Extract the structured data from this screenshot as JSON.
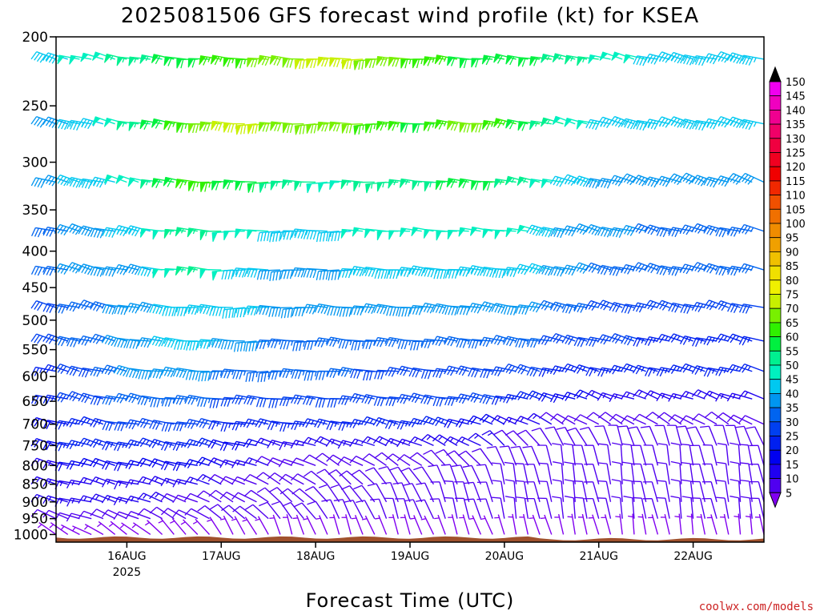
{
  "chart_data": {
    "type": "wind-barb-profile",
    "title": "2025081506 GFS forecast wind profile (kt) for KSEA",
    "xlabel": "Forecast Time (UTC)",
    "ylabel": "",
    "y_axis": {
      "scale": "log",
      "inverted": true,
      "range": [
        1025,
        200
      ],
      "ticks": [
        200,
        250,
        300,
        350,
        400,
        450,
        500,
        550,
        600,
        650,
        700,
        750,
        800,
        850,
        900,
        950,
        1000
      ],
      "tick_labels": [
        "200",
        "250",
        "300",
        "350",
        "400",
        "450",
        "500",
        "550",
        "600",
        "650",
        "700",
        "750",
        "800",
        "850",
        "900",
        "950",
        "1000"
      ]
    },
    "x_axis": {
      "range": [
        "2025-08-15 06Z",
        "2025-08-22 18Z"
      ],
      "ticks": [
        "16AUG",
        "17AUG",
        "18AUG",
        "19AUG",
        "20AUG",
        "21AUG",
        "22AUG"
      ],
      "tick_offsets_days": [
        0.75,
        1.75,
        2.75,
        3.75,
        4.75,
        5.75,
        6.75
      ],
      "range_days": [
        0,
        7.5
      ],
      "year_label": "2025",
      "year_under": "16AUG"
    },
    "barb_levels": [
      215,
      265,
      320,
      375,
      425,
      480,
      535,
      590,
      645,
      700,
      750,
      800,
      850,
      900,
      950,
      1000
    ],
    "barb_interval_hours": 3,
    "profile": [
      {
        "level": 215,
        "speed": [
          45,
          50,
          55,
          60,
          65,
          70,
          75,
          70,
          65,
          60,
          60,
          55,
          50,
          45,
          45,
          45
        ],
        "direction": [
          285,
          285,
          280,
          275,
          275,
          275,
          270,
          270,
          275,
          275,
          280,
          280,
          285,
          285,
          285,
          285
        ]
      },
      {
        "level": 265,
        "speed": [
          40,
          45,
          55,
          65,
          75,
          70,
          70,
          65,
          60,
          70,
          60,
          50,
          45,
          45,
          45,
          45
        ],
        "direction": [
          285,
          285,
          280,
          275,
          270,
          270,
          270,
          270,
          275,
          275,
          280,
          285,
          285,
          285,
          285,
          285
        ]
      },
      {
        "level": 320,
        "speed": [
          40,
          45,
          50,
          65,
          60,
          55,
          50,
          55,
          55,
          60,
          55,
          45,
          40,
          40,
          40,
          40
        ],
        "direction": [
          285,
          285,
          285,
          275,
          270,
          270,
          270,
          270,
          275,
          275,
          280,
          285,
          285,
          290,
          290,
          290
        ]
      },
      {
        "level": 375,
        "speed": [
          35,
          40,
          45,
          55,
          50,
          45,
          45,
          50,
          50,
          50,
          50,
          40,
          40,
          35,
          35,
          35
        ],
        "direction": [
          285,
          285,
          280,
          275,
          270,
          270,
          270,
          275,
          275,
          275,
          280,
          285,
          285,
          285,
          285,
          285
        ]
      },
      {
        "level": 425,
        "speed": [
          35,
          40,
          40,
          55,
          45,
          40,
          40,
          45,
          45,
          45,
          45,
          40,
          35,
          35,
          35,
          35
        ],
        "direction": [
          285,
          285,
          280,
          275,
          270,
          270,
          270,
          275,
          275,
          275,
          280,
          285,
          285,
          285,
          285,
          285
        ]
      },
      {
        "level": 480,
        "speed": [
          30,
          35,
          40,
          45,
          45,
          40,
          40,
          40,
          40,
          40,
          40,
          35,
          30,
          30,
          30,
          30
        ],
        "direction": [
          285,
          285,
          280,
          275,
          270,
          270,
          275,
          275,
          275,
          280,
          280,
          285,
          285,
          285,
          285,
          285
        ]
      },
      {
        "level": 535,
        "speed": [
          30,
          35,
          40,
          45,
          40,
          35,
          35,
          35,
          35,
          35,
          35,
          30,
          30,
          25,
          25,
          25
        ],
        "direction": [
          285,
          285,
          280,
          275,
          270,
          270,
          275,
          275,
          275,
          280,
          280,
          285,
          285,
          285,
          285,
          285
        ]
      },
      {
        "level": 590,
        "speed": [
          25,
          30,
          40,
          40,
          35,
          35,
          35,
          30,
          30,
          30,
          30,
          25,
          25,
          25,
          25,
          25
        ],
        "direction": [
          285,
          285,
          280,
          275,
          270,
          270,
          275,
          275,
          280,
          280,
          285,
          285,
          285,
          285,
          285,
          285
        ]
      },
      {
        "level": 645,
        "speed": [
          25,
          30,
          35,
          35,
          30,
          30,
          30,
          30,
          30,
          30,
          25,
          20,
          15,
          15,
          15,
          15
        ],
        "direction": [
          285,
          285,
          280,
          275,
          275,
          275,
          275,
          280,
          280,
          280,
          285,
          290,
          290,
          290,
          290,
          290
        ]
      },
      {
        "level": 700,
        "speed": [
          20,
          25,
          30,
          30,
          25,
          25,
          25,
          25,
          25,
          20,
          15,
          10,
          10,
          10,
          10,
          10
        ],
        "direction": [
          285,
          285,
          280,
          280,
          280,
          280,
          280,
          285,
          285,
          290,
          295,
          300,
          300,
          300,
          300,
          300
        ]
      },
      {
        "level": 750,
        "speed": [
          20,
          25,
          25,
          25,
          20,
          15,
          15,
          15,
          15,
          15,
          10,
          10,
          8,
          8,
          8,
          8
        ],
        "direction": [
          285,
          285,
          285,
          285,
          285,
          285,
          290,
          290,
          295,
          300,
          320,
          330,
          340,
          340,
          340,
          340
        ]
      },
      {
        "level": 800,
        "speed": [
          15,
          20,
          20,
          20,
          15,
          10,
          10,
          10,
          10,
          10,
          8,
          8,
          8,
          8,
          8,
          8
        ],
        "direction": [
          285,
          285,
          285,
          285,
          290,
          290,
          300,
          300,
          310,
          320,
          340,
          350,
          350,
          350,
          350,
          350
        ]
      },
      {
        "level": 850,
        "speed": [
          15,
          15,
          15,
          15,
          10,
          10,
          8,
          8,
          8,
          8,
          8,
          8,
          8,
          8,
          8,
          8
        ],
        "direction": [
          285,
          285,
          285,
          290,
          295,
          300,
          310,
          320,
          330,
          340,
          350,
          350,
          350,
          350,
          350,
          350
        ]
      },
      {
        "level": 900,
        "speed": [
          15,
          15,
          15,
          10,
          10,
          8,
          8,
          8,
          8,
          8,
          8,
          8,
          8,
          8,
          8,
          8
        ],
        "direction": [
          285,
          285,
          290,
          295,
          300,
          310,
          320,
          330,
          340,
          345,
          350,
          350,
          350,
          350,
          350,
          350
        ]
      },
      {
        "level": 950,
        "speed": [
          10,
          10,
          10,
          10,
          8,
          8,
          8,
          8,
          8,
          8,
          8,
          8,
          8,
          8,
          8,
          8
        ],
        "direction": [
          290,
          290,
          295,
          300,
          310,
          320,
          330,
          340,
          340,
          345,
          350,
          350,
          350,
          350,
          350,
          350
        ]
      },
      {
        "level": 1000,
        "speed": [
          5,
          5,
          5,
          5,
          5,
          5,
          5,
          5,
          5,
          5,
          5,
          5,
          5,
          5,
          5,
          5
        ],
        "direction": [
          300,
          300,
          310,
          320,
          330,
          340,
          340,
          340,
          340,
          340,
          345,
          345,
          350,
          350,
          350,
          350
        ]
      }
    ],
    "legend": {
      "type": "colorbar",
      "placement": "right",
      "labels": [
        "150",
        "145",
        "140",
        "135",
        "130",
        "125",
        "120",
        "115",
        "110",
        "105",
        "100",
        "95",
        "90",
        "85",
        "80",
        "75",
        "70",
        "65",
        "60",
        "55",
        "50",
        "45",
        "40",
        "35",
        "30",
        "25",
        "20",
        "15",
        "10",
        "5"
      ],
      "colors": [
        "#f000f0",
        "#f000c0",
        "#f00090",
        "#f00068",
        "#f00040",
        "#f00020",
        "#f00000",
        "#f02800",
        "#f05000",
        "#f07000",
        "#f08c00",
        "#f0a000",
        "#f0c000",
        "#f0e000",
        "#f0f000",
        "#c8f000",
        "#78f000",
        "#30f000",
        "#00f040",
        "#00f090",
        "#00f0c0",
        "#00c8f0",
        "#0096f0",
        "#0064f0",
        "#0040f0",
        "#0020f0",
        "#0000f0",
        "#2000f0",
        "#5000f0",
        "#8000f0"
      ],
      "overflow_color": "#000000"
    },
    "surface_color": "#a0522d",
    "credit": "coolwx.com/models"
  }
}
